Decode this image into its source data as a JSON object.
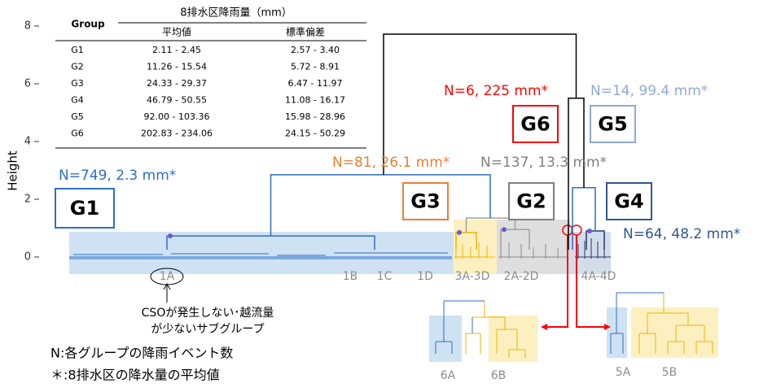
{
  "chart_data": {
    "type": "dendrogram",
    "ylabel": "Height",
    "ylim": [
      -0.6,
      8.6
    ],
    "yticks": [
      0,
      2,
      4,
      6,
      8
    ],
    "merges": [
      {
        "height": 0.73
      },
      {
        "height": 0.85
      },
      {
        "height": 0.95
      },
      {
        "height": 1.35
      },
      {
        "height": 2.85
      },
      {
        "height": 0.9
      },
      {
        "height": 2.4
      },
      {
        "height": 5.5
      },
      {
        "height": 7.72
      }
    ],
    "table": {
      "group": "Group",
      "title": "8排水区降雨量（mm）",
      "mean": "平均値",
      "sd": "標準偏差",
      "rows": [
        [
          "G1",
          "2.11 - 2.45",
          "2.57 - 3.40"
        ],
        [
          "G2",
          "11.26 - 15.54",
          "5.72 - 8.91"
        ],
        [
          "G3",
          "24.33 - 29.37",
          "6.47 - 11.97"
        ],
        [
          "G4",
          "46.79 - 50.55",
          "11.08 - 16.17"
        ],
        [
          "G5",
          "92.00 - 103.36",
          "15.98 - 28.96"
        ],
        [
          "G6",
          "202.83 - 234.06",
          "24.15 - 50.29"
        ]
      ]
    },
    "groups": [
      {
        "label": "G1",
        "note": "N=749,  2.3 mm*",
        "color": "#2e6fc4"
      },
      {
        "label": "G3",
        "note": "N=81, 26.1 mm*",
        "color": "#ed7d31"
      },
      {
        "label": "G2",
        "note": "N=137, 13.3 mm*",
        "color": "#808080"
      },
      {
        "label": "G6",
        "note": "N=6, 225 mm*",
        "color": "#ff0000"
      },
      {
        "label": "G5",
        "note": "N=14, 99.4 mm*",
        "color": "#8eaadb"
      },
      {
        "label": "G4",
        "note": "N=64, 48.2 mm*",
        "color": "#2f5597"
      }
    ],
    "subgroups": [
      "1A",
      "1B",
      "1C",
      "1D",
      "3A-3D",
      "2A-2D",
      "4A-4D",
      "6A",
      "6B",
      "5A",
      "5B"
    ],
    "notes": [
      "CSOが発生しない･越流量",
      "が少ないサブグループ",
      "N:各グループの降雨イベント数",
      "＊:8排水区の降水量の平均値"
    ]
  }
}
